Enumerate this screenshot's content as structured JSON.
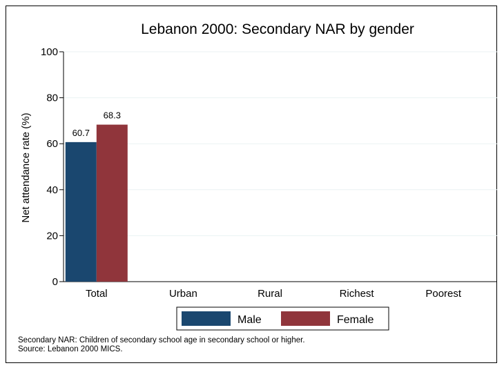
{
  "chart_data": {
    "type": "bar",
    "title": "Lebanon 2000: Secondary NAR by gender",
    "ylabel": "Net attendance rate (%)",
    "xlabel": "",
    "ylim": [
      0,
      100
    ],
    "yticks": [
      0,
      20,
      40,
      60,
      80,
      100
    ],
    "categories": [
      "Total",
      "Urban",
      "Rural",
      "Richest",
      "Poorest"
    ],
    "series": [
      {
        "name": "Male",
        "color": "#1a476f",
        "values": [
          60.7,
          null,
          null,
          null,
          null
        ]
      },
      {
        "name": "Female",
        "color": "#90353b",
        "values": [
          68.3,
          null,
          null,
          null,
          null
        ]
      }
    ],
    "grid": true,
    "legend_position": "bottom"
  },
  "notes": {
    "line1": "Secondary NAR: Children of secondary school age in secondary school or higher.",
    "line2": "Source: Lebanon 2000 MICS."
  }
}
